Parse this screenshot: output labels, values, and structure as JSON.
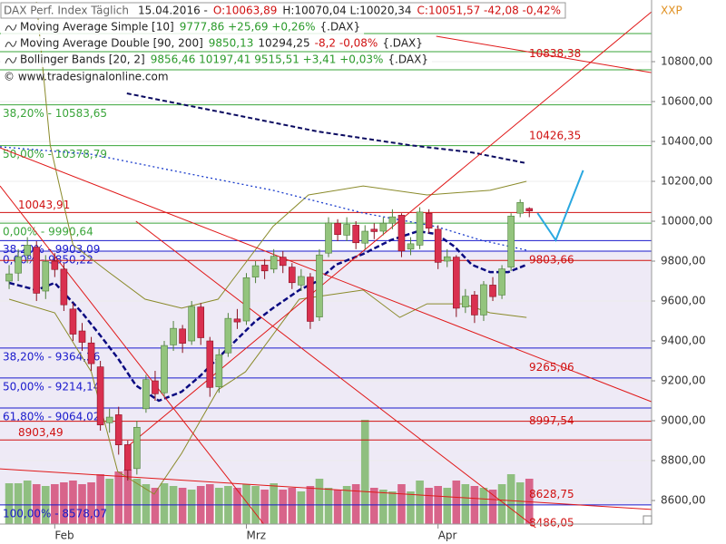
{
  "chart_data": {
    "type": "candlestick",
    "title": "DAX Perf. Index Täglich",
    "header": [
      {
        "text": "15.04.2016 -",
        "color": "#222222"
      },
      {
        "text": "O:10063,89",
        "color": "#d01010"
      },
      {
        "text": "H:10070,04 L:10020,34",
        "color": "#222222"
      },
      {
        "text": "C:10051,57 -42,08 -0,42%",
        "color": "#d01010"
      }
    ],
    "indicators": [
      {
        "name": "Moving Average Simple [10]",
        "readout": [
          {
            "text": "9777,86 +25,69 +0,26%",
            "color": "#2a9a2a"
          },
          {
            "text": "{.DAX}",
            "color": "#222222"
          }
        ]
      },
      {
        "name": "Moving Average Double [90, 200]",
        "readout": [
          {
            "text": "9850,13",
            "color": "#2a9a2a"
          },
          {
            "text": "10294,25",
            "color": "#222222"
          },
          {
            "text": "-8,2 -0,08%",
            "color": "#d01010"
          },
          {
            "text": "{.DAX}",
            "color": "#222222"
          }
        ]
      },
      {
        "name": "Bollinger Bands [20, 2]",
        "readout": [
          {
            "text": "9856,46 10197,41 9515,51 +3,41 +0,03%",
            "color": "#2a9a2a"
          },
          {
            "text": "{.DAX}",
            "color": "#222222"
          }
        ]
      }
    ],
    "watermark": "© www.tradesignalonline.com",
    "corner_label": "XXP",
    "categories": [
      null,
      null,
      null,
      null,
      null,
      "Feb",
      null,
      null,
      null,
      null,
      null,
      null,
      null,
      null,
      null,
      null,
      null,
      null,
      null,
      null,
      null,
      null,
      null,
      null,
      null,
      null,
      "Mrz",
      null,
      null,
      null,
      null,
      null,
      null,
      null,
      null,
      null,
      null,
      null,
      null,
      null,
      null,
      null,
      null,
      null,
      null,
      null,
      null,
      "Apr",
      null,
      null,
      null,
      null,
      null,
      null,
      null,
      null,
      null,
      null
    ],
    "open": [
      9700,
      9740,
      9830,
      9870,
      9650,
      9800,
      9760,
      9560,
      9450,
      9390,
      9270,
      8990,
      9030,
      8880,
      8760,
      9060,
      9200,
      9140,
      9380,
      9460,
      9400,
      9570,
      9400,
      9170,
      9340,
      9510,
      9500,
      9720,
      9780,
      9760,
      9820,
      9770,
      9680,
      9720,
      9520,
      9840,
      9990,
      9930,
      9980,
      9890,
      9960,
      9950,
      9990,
      10030,
      9860,
      9880,
      10040,
      9960,
      9800,
      9820,
      9570,
      9630,
      9530,
      9680,
      9630,
      9770,
      10040,
      10063.89
    ],
    "high": [
      9780,
      9860,
      9920,
      9900,
      9830,
      9840,
      9790,
      9590,
      9490,
      9420,
      9300,
      9060,
      9070,
      8900,
      9000,
      9230,
      9250,
      9400,
      9500,
      9480,
      9600,
      9590,
      9420,
      9360,
      9540,
      9560,
      9740,
      9800,
      9810,
      9860,
      9850,
      9790,
      9760,
      9740,
      9860,
      10020,
      10010,
      10020,
      10000,
      9980,
      9990,
      10020,
      10060,
      10040,
      9920,
      10070,
      10060,
      9980,
      9860,
      9830,
      9660,
      9650,
      9700,
      9720,
      9780,
      10040,
      10110,
      10070.04
    ],
    "low": [
      9660,
      9700,
      9790,
      9600,
      9610,
      9720,
      9550,
      9400,
      9350,
      9250,
      8950,
      8940,
      8830,
      8700,
      8730,
      9040,
      9100,
      9120,
      9350,
      9340,
      9380,
      9380,
      9120,
      9140,
      9320,
      9460,
      9480,
      9690,
      9710,
      9740,
      9740,
      9660,
      9650,
      9460,
      9500,
      9820,
      9900,
      9900,
      9860,
      9860,
      9910,
      9930,
      9960,
      9820,
      9830,
      9860,
      9940,
      9760,
      9770,
      9520,
      9540,
      9490,
      9500,
      9600,
      9610,
      9750,
      10020,
      10020.34
    ],
    "close": [
      9736,
      9822,
      9880,
      9639,
      9798,
      9758,
      9581,
      9434,
      9393,
      9286,
      8979,
      9018,
      8879,
      8752,
      8967,
      9206,
      9135,
      9377,
      9463,
      9388,
      9573,
      9416,
      9167,
      9331,
      9513,
      9495,
      9717,
      9777,
      9751,
      9824,
      9778,
      9692,
      9723,
      9498,
      9831,
      9991,
      9933,
      9984,
      9892,
      9950,
      9948,
      9990,
      10022,
      9851,
      9887,
      10046,
      9965,
      9794,
      9822,
      9564,
      9624,
      9530,
      9682,
      9622,
      9761,
      10026,
      10094,
      10051.57
    ],
    "up_color": "#93c47d",
    "up_edge": "#4e7f3a",
    "down_color": "#d9304f",
    "down_edge": "#8a1020",
    "volume": {
      "values": [
        45,
        45,
        48,
        44,
        42,
        44,
        46,
        48,
        44,
        46,
        55,
        50,
        58,
        60,
        50,
        44,
        40,
        45,
        42,
        40,
        38,
        42,
        44,
        40,
        42,
        40,
        44,
        42,
        38,
        45,
        38,
        40,
        36,
        42,
        50,
        40,
        38,
        42,
        44,
        115,
        40,
        38,
        36,
        44,
        36,
        48,
        40,
        42,
        40,
        48,
        44,
        42,
        40,
        38,
        44,
        55,
        46,
        50
      ],
      "ylim": [
        0,
        120
      ],
      "up_color": "#8fbf80",
      "down_color": "#d8648a"
    },
    "xlim": [
      -1,
      70.4
    ],
    "ylim": [
      8482,
      11109
    ],
    "yticks": [
      {
        "value": 8600,
        "label": "8600,00"
      },
      {
        "value": 8800,
        "label": "8800,00"
      },
      {
        "value": 9000,
        "label": "9000,00"
      },
      {
        "value": 9200,
        "label": "9200,00"
      },
      {
        "value": 9400,
        "label": "9400,00"
      },
      {
        "value": 9600,
        "label": "9600,00"
      },
      {
        "value": 9800,
        "label": "9800,00"
      },
      {
        "value": 10000,
        "label": "10000,00"
      },
      {
        "value": 10200,
        "label": "10200,00"
      },
      {
        "value": 10400,
        "label": "10400,00"
      },
      {
        "value": 10600,
        "label": "10600,00"
      },
      {
        "value": 10800,
        "label": "10800,00"
      }
    ],
    "levels": [
      {
        "value": 10941,
        "color": "#3aa53a"
      },
      {
        "value": 10850,
        "color": "#3aa53a"
      },
      {
        "value": 10759,
        "color": "#3aa53a"
      },
      {
        "value": 10583.65,
        "label": "38,20% - 10583,65",
        "color": "#3aa53a"
      },
      {
        "value": 10378.79,
        "label": "50,00% - 10378,79",
        "color": "#3aa53a"
      },
      {
        "value": 9990.64,
        "label": "0,00% - 9990,64",
        "color": "#3aa53a"
      },
      {
        "value": 10043.91,
        "label": "10043,91",
        "color": "#d01010"
      },
      {
        "value": 9903.09,
        "label": "38,20% - 9903,09",
        "color": "#1a1acc"
      },
      {
        "value": 9850.22,
        "label": "0,00% - 9850,22",
        "color": "#1a1acc"
      },
      {
        "value": 9803.66,
        "color": "#d01010"
      },
      {
        "value": 9364.26,
        "label": "38,20% - 9364,26",
        "color": "#1a1acc"
      },
      {
        "value": 9214.14,
        "label": "50,00% - 9214,14",
        "color": "#1a1acc"
      },
      {
        "value": 9064.02,
        "label": "61,80% - 9064,02",
        "color": "#1a1acc"
      },
      {
        "value": 8997.54,
        "color": "#d01010"
      },
      {
        "value": 8903.49,
        "label": "8903,49",
        "color": "#d01010"
      },
      {
        "value": 8578.07,
        "label": "100,00% - 8578,07",
        "color": "#1a1acc"
      }
    ],
    "right_labels": [
      {
        "value": 10838.38,
        "label": "10838,38"
      },
      {
        "value": 10426.35,
        "label": "10426,35"
      },
      {
        "value": 9803.66,
        "label": "9803,66"
      },
      {
        "value": 9265.06,
        "label": "9265,06"
      },
      {
        "value": 8997.54,
        "label": "8997,54"
      },
      {
        "value": 8628.75,
        "label": "8628,75"
      },
      {
        "value": 8486.05,
        "label": "8486,05"
      }
    ],
    "band": {
      "from": 9850.22,
      "to": 8578.07,
      "color": "#eeeaf6"
    },
    "lines": [
      {
        "color": "#8a8a2a",
        "dash": "",
        "width": 1,
        "x": [
          3.0,
          4.5,
          7.0,
          10.9,
          14.9,
          18.9,
          22.9,
          25.9,
          28.9,
          32.8,
          38.8,
          45.8,
          52.7,
          56.7
        ],
        "values": [
          11100,
          10382,
          9882,
          9745,
          9609,
          9564,
          9609,
          9791,
          9973,
          10132,
          10177,
          10132,
          10155,
          10200
        ]
      },
      {
        "color": "#8a8a2a",
        "dash": "",
        "width": 1,
        "x": [
          0,
          5.0,
          9.0,
          11.9,
          15.9,
          18.9,
          22.9,
          25.9,
          31.8,
          38.8,
          42.8,
          45.8,
          49.8,
          52.7,
          56.7
        ],
        "values": [
          9609,
          9541,
          9245,
          8745,
          8632,
          8836,
          9155,
          9245,
          9609,
          9655,
          9518,
          9586,
          9586,
          9541,
          9518
        ]
      },
      {
        "color": "#1a3ccc",
        "dash": "2 3",
        "width": 1.3,
        "x": [
          -1.0,
          8.96,
          18.9,
          28.9,
          38.8,
          46.8,
          51.7,
          56.7
        ],
        "values": [
          10373,
          10336,
          10245,
          10155,
          10041,
          9973,
          9905,
          9855
        ]
      },
      {
        "color": "#0a0a60",
        "dash": "5 3",
        "width": 2,
        "x": [
          12.9,
          23.9,
          33.8,
          43.8,
          50.7,
          56.7
        ],
        "values": [
          10641,
          10541,
          10450,
          10382,
          10345,
          10291
        ]
      },
      {
        "color": "#0a0a80",
        "dash": "6 3",
        "width": 2.5,
        "x": [
          0,
          3.0,
          5.0,
          8.0,
          10.0,
          11.9,
          13.9,
          16.4,
          18.9,
          20.9,
          22.9,
          24.9,
          26.9,
          28.9,
          31.8,
          33.8,
          35.8,
          38.8,
          41.8,
          44.8,
          46.8,
          48.8,
          50.7,
          52.7,
          54.7,
          56.7
        ],
        "values": [
          9691,
          9655,
          9691,
          9541,
          9427,
          9314,
          9177,
          9100,
          9145,
          9223,
          9314,
          9405,
          9495,
          9564,
          9655,
          9700,
          9782,
          9836,
          9905,
          9950,
          9936,
          9873,
          9782,
          9745,
          9745,
          9782
        ]
      },
      {
        "color": "#e01818",
        "dash": "",
        "width": 1,
        "x": [
          -1.0,
          70.4
        ],
        "values": [
          10368,
          9095
        ]
      },
      {
        "color": "#e01818",
        "dash": "",
        "width": 1,
        "x": [
          -1.0,
          27.9
        ],
        "values": [
          10177,
          8482
        ]
      },
      {
        "color": "#e01818",
        "dash": "",
        "width": 1,
        "x": [
          -1.0,
          70.4
        ],
        "values": [
          8759,
          8555
        ]
      },
      {
        "color": "#e01818",
        "dash": "",
        "width": 1,
        "x": [
          12.9,
          70.4
        ],
        "values": [
          8868,
          11050
        ]
      },
      {
        "color": "#e01818",
        "dash": "",
        "width": 1,
        "x": [
          46.8,
          70.4
        ],
        "values": [
          10927,
          10745
        ]
      },
      {
        "color": "#e01818",
        "dash": "",
        "width": 1,
        "x": [
          13.9,
          57.7
        ],
        "values": [
          10000,
          8464
        ]
      },
      {
        "color": "#2aa8e0",
        "dash": "",
        "width": 2,
        "x": [
          57.9,
          59.9,
          62.9
        ],
        "values": [
          10041,
          9905,
          10255
        ]
      }
    ]
  }
}
